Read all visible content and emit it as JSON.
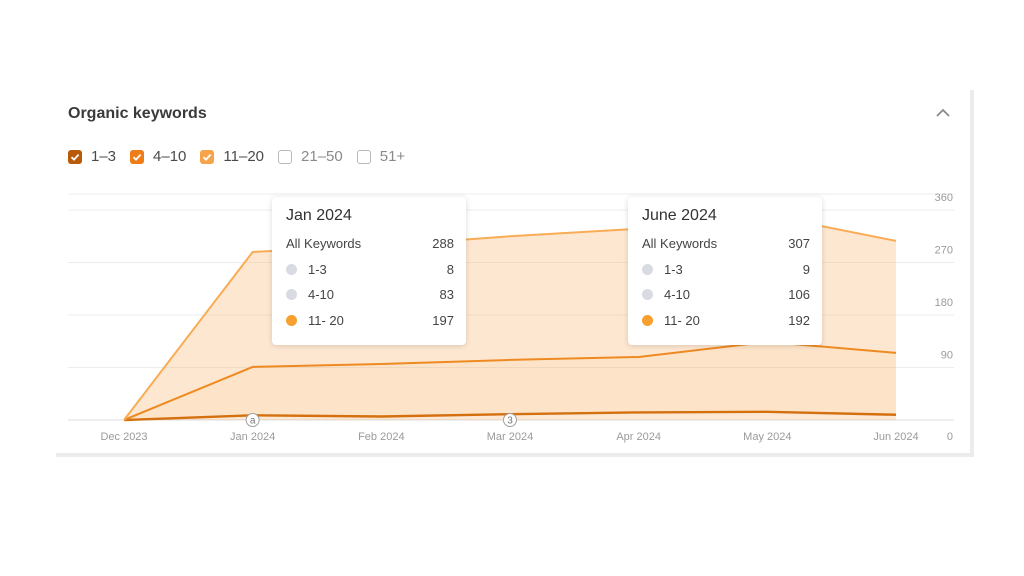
{
  "header": {
    "title": "Organic keywords"
  },
  "filters": [
    {
      "label": "1–3",
      "checked": true,
      "color": "#b85a0a",
      "text_color": "#4a4a4a"
    },
    {
      "label": "4–10",
      "checked": true,
      "color": "#ee7c17",
      "text_color": "#4a4a4a"
    },
    {
      "label": "11–20",
      "checked": true,
      "color": "#f7a349",
      "text_color": "#4a4a4a"
    },
    {
      "label": "21–50",
      "checked": false,
      "color": "#b9b9b9",
      "text_color": "#8a8a8a"
    },
    {
      "label": "51+",
      "checked": false,
      "color": "#b9b9b9",
      "text_color": "#8a8a8a"
    }
  ],
  "annotations": [
    {
      "label": "a",
      "x": "Jan 2024"
    },
    {
      "label": "3",
      "x": "Mar 2024"
    }
  ],
  "tooltips": [
    {
      "title": "Jan 2024",
      "total_label": "All Keywords",
      "total": "288",
      "rows": [
        {
          "label": "1-3",
          "value": "8",
          "dot_color": "#d9dbe2"
        },
        {
          "label": "4-10",
          "value": "83",
          "dot_color": "#d9dbe2"
        },
        {
          "label": "11- 20",
          "value": "197",
          "dot_color": "#f7a030"
        }
      ]
    },
    {
      "title": "June 2024",
      "total_label": "All Keywords",
      "total": "307",
      "rows": [
        {
          "label": "1-3",
          "value": "9",
          "dot_color": "#d9dbe2"
        },
        {
          "label": "4-10",
          "value": "106",
          "dot_color": "#d9dbe2"
        },
        {
          "label": "11- 20",
          "value": "192",
          "dot_color": "#f7a030"
        }
      ]
    }
  ],
  "chart_data": {
    "type": "area",
    "stacked": true,
    "categories": [
      "Dec 2023",
      "Jan 2024",
      "Feb 2024",
      "Mar 2024",
      "Apr 2024",
      "May 2024",
      "Jun 2024"
    ],
    "series": [
      {
        "name": "1–3",
        "values": [
          0,
          8,
          6,
          10,
          13,
          14,
          9
        ],
        "color": "#d4700f"
      },
      {
        "name": "4–10",
        "values": [
          0,
          83,
          90,
          93,
          95,
          120,
          106
        ],
        "color": "#ee8a22"
      },
      {
        "name": "11–20",
        "values": [
          0,
          197,
          203,
          212,
          220,
          217,
          192
        ],
        "color": "#f9ac55"
      }
    ],
    "y_ticks": [
      "0",
      "90",
      "180",
      "270",
      "360"
    ],
    "ylim": [
      0,
      360
    ],
    "y_axis_position": "right",
    "grid": true
  }
}
